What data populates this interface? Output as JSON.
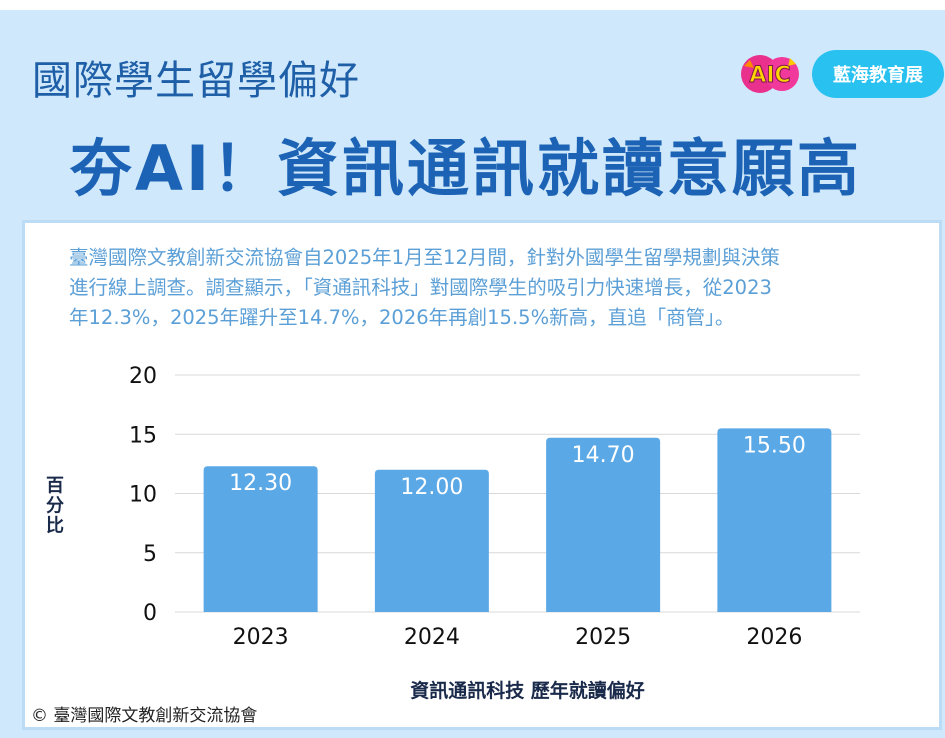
{
  "header": {
    "subtitle": "國際學生留學偏好",
    "title": "夯AI！資訊通訊就讀意願高",
    "logo_text": "AIC",
    "brand_label": "藍海教育展"
  },
  "description": [
    "臺灣國際文教創新交流協會自2025年1月至12月間，針對外國學生留學規劃與決策",
    "進行線上調查。調查顯示，「資通訊科技」對國際學生的吸引力快速增長，從2023",
    "年12.3%，2025年躍升至14.7%，2026年再創15.5%新高，直追「商管」。"
  ],
  "copyright": "© 臺灣國際文教創新交流協會",
  "colors": {
    "bar": "#5ba8e6",
    "title": "#1c62b5",
    "background": "#cfe8fb",
    "pill": "#29c1f0"
  },
  "chart_data": {
    "type": "bar",
    "categories": [
      "2023",
      "2024",
      "2025",
      "2026"
    ],
    "values": [
      12.3,
      12.0,
      14.7,
      15.5
    ],
    "data_labels": [
      "12.30",
      "12.00",
      "14.70",
      "15.50"
    ],
    "yticks": [
      "0",
      "5",
      "10",
      "15",
      "20"
    ],
    "ylim": [
      0,
      20
    ],
    "ylabel": "百分比",
    "xlabel": "資訊通訊科技 歷年就讀偏好",
    "grid": true
  }
}
